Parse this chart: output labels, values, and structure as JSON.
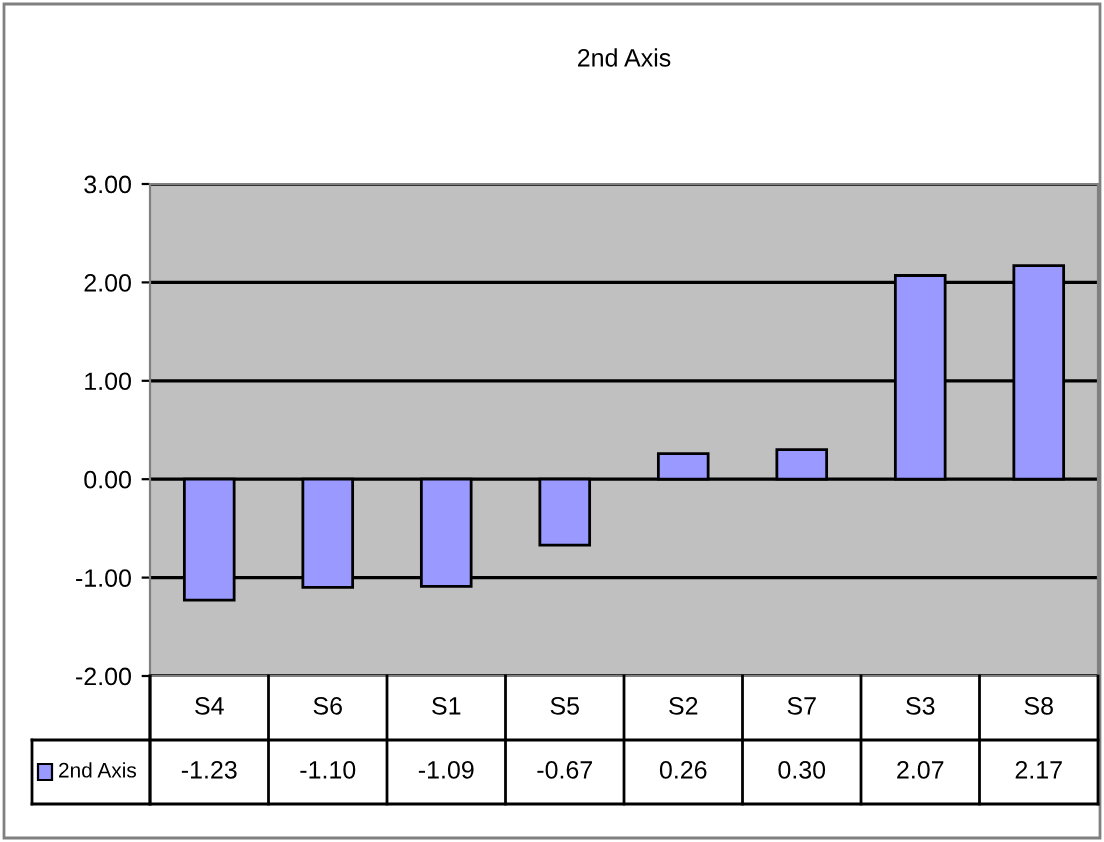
{
  "chart_data": {
    "type": "bar",
    "title": "2nd Axis",
    "categories": [
      "S4",
      "S6",
      "S1",
      "S5",
      "S2",
      "S7",
      "S3",
      "S8"
    ],
    "series": [
      {
        "name": "2nd Axis",
        "color": "#9999ff",
        "values": [
          -1.23,
          -1.1,
          -1.09,
          -0.67,
          0.26,
          0.3,
          2.07,
          2.17
        ],
        "value_labels": [
          "-1.23",
          "-1.10",
          "-1.09",
          "-0.67",
          "0.26",
          "0.30",
          "2.07",
          "2.17"
        ]
      }
    ],
    "ylim": [
      -2,
      3
    ],
    "yticks": [
      {
        "value": 3,
        "label": "3.00"
      },
      {
        "value": 2,
        "label": "2.00"
      },
      {
        "value": 1,
        "label": "1.00"
      },
      {
        "value": 0,
        "label": "0.00"
      },
      {
        "value": -1,
        "label": "-1.00"
      },
      {
        "value": -2,
        "label": "-2.00"
      }
    ],
    "grid": "y"
  }
}
